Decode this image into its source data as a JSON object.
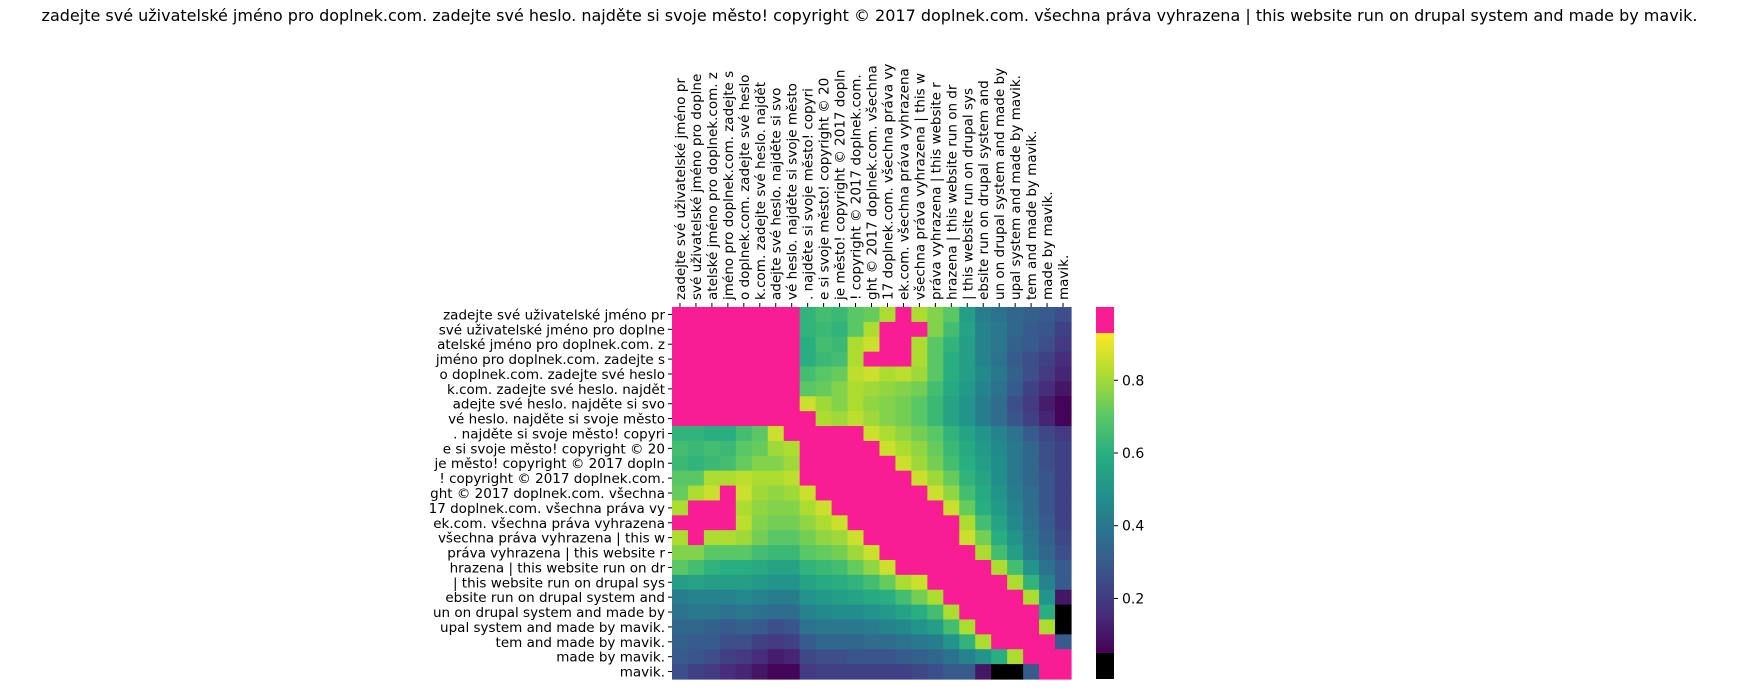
{
  "chart_data": {
    "type": "heatmap",
    "title": "zadejte své uživatelské jméno pro doplnek.com. zadejte své heslo. najděte si svoje město! copyright © 2017 doplnek.com. všechna práva vyhrazena | this website run on drupal system and made by mavik.",
    "xlabel": "",
    "ylabel": "",
    "x_tick_labels": [
      "zadejte své uživatelské jméno pr",
      "své uživatelské jméno pro doplne",
      "atelské jméno pro doplnek.com. z",
      "jméno pro doplnek.com. zadejte s",
      "o doplnek.com. zadejte své heslo",
      "k.com. zadejte své heslo. najdět",
      "adejte své heslo. najděte si svo",
      "vé heslo. najděte si svoje město",
      ". najděte si svoje město! copyri",
      "e si svoje město! copyright © 20",
      "je město! copyright © 2017 dopln",
      "! copyright © 2017 doplnek.com. ",
      "ght © 2017 doplnek.com. všechna ",
      "17 doplnek.com. všechna práva vy",
      "ek.com. všechna práva vyhrazena ",
      "všechna práva vyhrazena | this w",
      "práva vyhrazena | this website r",
      "hrazena | this website run on dr",
      "| this website run on drupal sys",
      "ebsite run on drupal system and ",
      "un on drupal system and made by ",
      "upal system and made by mavik. ",
      "tem and made by mavik.",
      "made by mavik.",
      "mavik."
    ],
    "y_tick_labels": [
      "zadejte své uživatelské jméno pr",
      "své uživatelské jméno pro doplne",
      "atelské jméno pro doplnek.com. z",
      "jméno pro doplnek.com. zadejte s",
      "o doplnek.com. zadejte své heslo",
      "k.com. zadejte své heslo. najdět",
      "adejte své heslo. najděte si svo",
      "vé heslo. najděte si svoje město",
      ". najděte si svoje město! copyri",
      "e si svoje město! copyright © 20",
      "je město! copyright © 2017 dopln",
      "! copyright © 2017 doplnek.com. ",
      "ght © 2017 doplnek.com. všechna ",
      "17 doplnek.com. všechna práva vy",
      "ek.com. všechna práva vyhrazena ",
      "všechna práva vyhrazena | this w",
      "práva vyhrazena | this website r",
      "hrazena | this website run on dr",
      "| this website run on drupal sys",
      "ebsite run on drupal system and ",
      "un on drupal system and made by ",
      "upal system and made by mavik. ",
      "tem and made by mavik. ",
      "made by mavik.",
      "mavik."
    ],
    "values": [
      [
        1.0,
        0.97,
        0.97,
        0.97,
        0.97,
        0.95,
        0.97,
        0.97,
        0.62,
        0.66,
        0.64,
        0.7,
        0.72,
        0.82,
        0.97,
        0.82,
        0.76,
        0.7,
        0.54,
        0.42,
        0.38,
        0.34,
        0.32,
        0.3,
        0.26
      ],
      [
        0.97,
        1.0,
        0.97,
        0.97,
        0.97,
        0.97,
        0.97,
        0.97,
        0.62,
        0.64,
        0.62,
        0.7,
        0.82,
        0.97,
        0.97,
        0.97,
        0.76,
        0.66,
        0.56,
        0.44,
        0.4,
        0.34,
        0.3,
        0.28,
        0.22
      ],
      [
        0.97,
        0.97,
        1.0,
        0.97,
        0.97,
        0.97,
        0.97,
        0.97,
        0.6,
        0.66,
        0.64,
        0.82,
        0.86,
        0.97,
        0.97,
        0.82,
        0.7,
        0.62,
        0.54,
        0.44,
        0.4,
        0.32,
        0.3,
        0.26,
        0.2
      ],
      [
        0.97,
        0.97,
        0.97,
        1.0,
        0.97,
        0.97,
        0.97,
        0.97,
        0.6,
        0.64,
        0.66,
        0.82,
        0.97,
        0.97,
        0.97,
        0.82,
        0.7,
        0.6,
        0.54,
        0.44,
        0.38,
        0.3,
        0.26,
        0.22,
        0.16
      ],
      [
        0.97,
        0.97,
        0.97,
        0.97,
        1.0,
        0.97,
        0.97,
        0.97,
        0.66,
        0.7,
        0.72,
        0.84,
        0.86,
        0.82,
        0.84,
        0.8,
        0.7,
        0.6,
        0.54,
        0.46,
        0.4,
        0.32,
        0.26,
        0.2,
        0.14
      ],
      [
        0.95,
        0.97,
        0.97,
        0.97,
        0.97,
        1.0,
        0.97,
        0.97,
        0.7,
        0.72,
        0.76,
        0.82,
        0.8,
        0.78,
        0.76,
        0.74,
        0.66,
        0.58,
        0.52,
        0.44,
        0.38,
        0.3,
        0.22,
        0.16,
        0.1
      ],
      [
        0.97,
        0.97,
        0.97,
        0.97,
        0.97,
        0.97,
        1.0,
        0.97,
        0.86,
        0.8,
        0.76,
        0.82,
        0.78,
        0.76,
        0.74,
        0.7,
        0.64,
        0.56,
        0.5,
        0.42,
        0.36,
        0.26,
        0.2,
        0.12,
        0.06
      ],
      [
        0.97,
        0.97,
        0.97,
        0.97,
        0.97,
        0.97,
        0.97,
        1.0,
        0.97,
        0.82,
        0.8,
        0.84,
        0.8,
        0.76,
        0.74,
        0.7,
        0.64,
        0.56,
        0.5,
        0.42,
        0.36,
        0.28,
        0.22,
        0.14,
        0.06
      ],
      [
        0.62,
        0.62,
        0.6,
        0.6,
        0.66,
        0.7,
        0.86,
        0.97,
        1.0,
        0.97,
        0.97,
        0.97,
        0.86,
        0.82,
        0.78,
        0.74,
        0.7,
        0.62,
        0.56,
        0.5,
        0.44,
        0.38,
        0.3,
        0.24,
        0.2
      ],
      [
        0.66,
        0.64,
        0.66,
        0.64,
        0.7,
        0.72,
        0.8,
        0.82,
        0.97,
        1.0,
        0.97,
        0.97,
        0.97,
        0.86,
        0.82,
        0.78,
        0.72,
        0.64,
        0.58,
        0.52,
        0.46,
        0.4,
        0.34,
        0.26,
        0.22
      ],
      [
        0.64,
        0.62,
        0.64,
        0.66,
        0.72,
        0.76,
        0.76,
        0.8,
        0.97,
        0.97,
        1.0,
        0.97,
        0.97,
        0.97,
        0.86,
        0.8,
        0.74,
        0.66,
        0.6,
        0.54,
        0.48,
        0.4,
        0.34,
        0.26,
        0.22
      ],
      [
        0.7,
        0.7,
        0.82,
        0.82,
        0.84,
        0.82,
        0.82,
        0.84,
        0.97,
        0.97,
        0.97,
        1.0,
        0.97,
        0.97,
        0.97,
        0.86,
        0.8,
        0.72,
        0.62,
        0.56,
        0.48,
        0.4,
        0.34,
        0.28,
        0.22
      ],
      [
        0.72,
        0.82,
        0.86,
        0.97,
        0.86,
        0.8,
        0.78,
        0.8,
        0.86,
        0.97,
        0.97,
        0.97,
        1.0,
        0.97,
        0.97,
        0.97,
        0.86,
        0.78,
        0.66,
        0.58,
        0.5,
        0.42,
        0.36,
        0.28,
        0.22
      ],
      [
        0.82,
        0.97,
        0.97,
        0.97,
        0.82,
        0.78,
        0.76,
        0.76,
        0.82,
        0.86,
        0.97,
        0.97,
        0.97,
        1.0,
        0.97,
        0.97,
        0.97,
        0.86,
        0.72,
        0.6,
        0.52,
        0.44,
        0.36,
        0.28,
        0.22
      ],
      [
        0.97,
        0.97,
        0.97,
        0.97,
        0.84,
        0.76,
        0.74,
        0.74,
        0.78,
        0.82,
        0.86,
        0.97,
        0.97,
        0.97,
        1.0,
        0.97,
        0.97,
        0.97,
        0.82,
        0.66,
        0.56,
        0.46,
        0.38,
        0.3,
        0.22
      ],
      [
        0.82,
        0.97,
        0.82,
        0.82,
        0.8,
        0.74,
        0.7,
        0.7,
        0.74,
        0.78,
        0.8,
        0.86,
        0.97,
        0.97,
        0.97,
        1.0,
        0.97,
        0.97,
        0.86,
        0.74,
        0.6,
        0.5,
        0.4,
        0.32,
        0.24
      ],
      [
        0.76,
        0.76,
        0.7,
        0.7,
        0.7,
        0.66,
        0.64,
        0.64,
        0.7,
        0.72,
        0.74,
        0.8,
        0.86,
        0.97,
        0.97,
        0.97,
        1.0,
        0.97,
        0.97,
        0.82,
        0.66,
        0.54,
        0.42,
        0.34,
        0.26
      ],
      [
        0.7,
        0.66,
        0.62,
        0.6,
        0.6,
        0.58,
        0.56,
        0.56,
        0.62,
        0.64,
        0.66,
        0.72,
        0.78,
        0.86,
        0.97,
        0.97,
        0.97,
        1.0,
        0.97,
        0.97,
        0.82,
        0.66,
        0.5,
        0.38,
        0.3
      ],
      [
        0.54,
        0.56,
        0.54,
        0.54,
        0.54,
        0.52,
        0.5,
        0.5,
        0.56,
        0.58,
        0.6,
        0.62,
        0.66,
        0.72,
        0.82,
        0.86,
        0.97,
        0.97,
        1.0,
        0.97,
        0.97,
        0.82,
        0.62,
        0.44,
        0.3
      ],
      [
        0.42,
        0.44,
        0.44,
        0.44,
        0.46,
        0.44,
        0.42,
        0.42,
        0.5,
        0.52,
        0.54,
        0.56,
        0.58,
        0.6,
        0.66,
        0.74,
        0.82,
        0.97,
        0.97,
        1.0,
        0.97,
        0.97,
        0.82,
        0.5,
        0.1
      ],
      [
        0.38,
        0.4,
        0.4,
        0.38,
        0.4,
        0.38,
        0.36,
        0.36,
        0.44,
        0.46,
        0.48,
        0.48,
        0.5,
        0.52,
        0.56,
        0.6,
        0.66,
        0.82,
        0.97,
        0.97,
        1.0,
        0.97,
        0.97,
        0.6,
        0.04
      ],
      [
        0.34,
        0.34,
        0.32,
        0.3,
        0.32,
        0.3,
        0.26,
        0.28,
        0.38,
        0.4,
        0.4,
        0.4,
        0.42,
        0.44,
        0.46,
        0.5,
        0.54,
        0.66,
        0.82,
        0.97,
        0.97,
        1.0,
        0.97,
        0.82,
        0.04
      ],
      [
        0.32,
        0.3,
        0.3,
        0.26,
        0.26,
        0.22,
        0.2,
        0.22,
        0.3,
        0.34,
        0.34,
        0.34,
        0.36,
        0.36,
        0.38,
        0.4,
        0.42,
        0.5,
        0.62,
        0.82,
        0.97,
        0.97,
        1.0,
        0.97,
        0.3
      ],
      [
        0.3,
        0.28,
        0.26,
        0.22,
        0.2,
        0.16,
        0.12,
        0.14,
        0.24,
        0.26,
        0.26,
        0.28,
        0.28,
        0.28,
        0.3,
        0.32,
        0.34,
        0.38,
        0.44,
        0.5,
        0.6,
        0.82,
        0.97,
        1.0,
        0.97
      ],
      [
        0.26,
        0.22,
        0.2,
        0.16,
        0.14,
        0.1,
        0.06,
        0.06,
        0.2,
        0.22,
        0.22,
        0.22,
        0.22,
        0.22,
        0.22,
        0.24,
        0.26,
        0.3,
        0.3,
        0.1,
        0.04,
        0.04,
        0.3,
        0.97,
        1.0
      ]
    ],
    "colorbar": {
      "ticks": [
        0.2,
        0.4,
        0.6,
        0.8
      ],
      "tick_labels": [
        "0.2",
        "0.4",
        "0.6",
        "0.8"
      ],
      "vmin": 0.05,
      "vmax": 0.93,
      "under_color": "#000000",
      "over_color": "#f81d92"
    },
    "colors": {
      "viridis": [
        "#440154",
        "#472d7b",
        "#3b528b",
        "#2c728e",
        "#21918c",
        "#28ae80",
        "#5ec962",
        "#addc30",
        "#fde725"
      ]
    }
  }
}
